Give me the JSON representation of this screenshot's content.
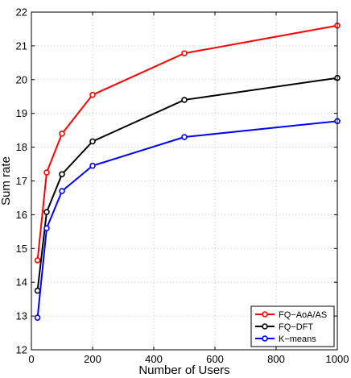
{
  "chart_data": {
    "type": "line",
    "xlabel": "Number of Users",
    "ylabel": "Sum rate",
    "xlim": [
      0,
      1000
    ],
    "ylim": [
      12,
      22
    ],
    "xticks": [
      0,
      200,
      400,
      600,
      800,
      1000
    ],
    "yticks": [
      12,
      13,
      14,
      15,
      16,
      17,
      18,
      19,
      20,
      21,
      22
    ],
    "grid": true,
    "legend_position": "bottom-right",
    "series": [
      {
        "name": "FQ−AoA/AS",
        "color": "#ff0000",
        "x": [
          20,
          50,
          100,
          200,
          500,
          1000
        ],
        "y": [
          14.65,
          17.25,
          18.4,
          19.55,
          20.78,
          21.6
        ]
      },
      {
        "name": "FQ−DFT",
        "color": "#000000",
        "x": [
          20,
          50,
          100,
          200,
          500,
          1000
        ],
        "y": [
          13.75,
          16.08,
          17.2,
          18.17,
          19.4,
          20.05
        ]
      },
      {
        "name": "K−means",
        "color": "#0000ff",
        "x": [
          20,
          50,
          100,
          200,
          500,
          1000
        ],
        "y": [
          12.95,
          15.6,
          16.7,
          17.45,
          18.3,
          18.77
        ]
      }
    ]
  }
}
